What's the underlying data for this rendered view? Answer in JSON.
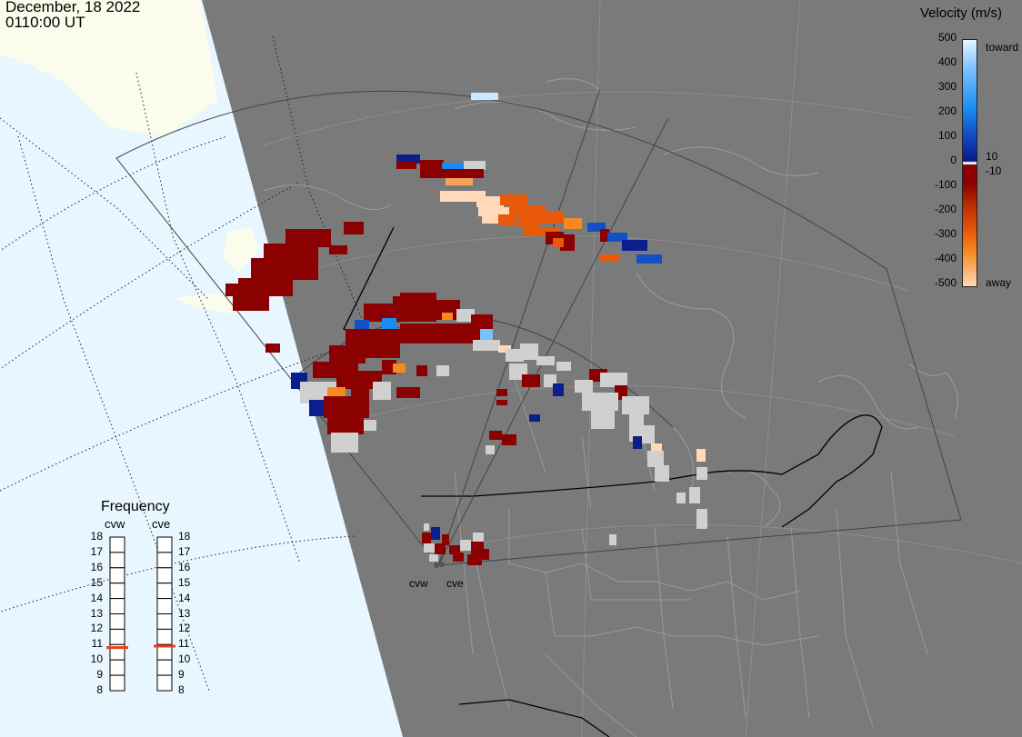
{
  "header": {
    "date": "December, 18 2022",
    "time": "0110:00 UT"
  },
  "colorbar": {
    "title": "Velocity (m/s)",
    "ticks": [
      "500",
      "400",
      "300",
      "200",
      "100",
      "0",
      "-100",
      "-200",
      "-300",
      "-400",
      "-500"
    ],
    "small_ticks": [
      "10",
      "-10"
    ],
    "toward_label": "toward",
    "away_label": "away",
    "colors": {
      "toward_light": "#c8e9ff",
      "toward_mid": "#1a8cf0",
      "toward_dark": "#0a1f8c",
      "zero": "#f0f0f0",
      "away_dark": "#8b0000",
      "away_mid": "#e85a0a",
      "away_light": "#ffd9b8"
    }
  },
  "frequency_panel": {
    "title": "Frequency",
    "radars": [
      {
        "name": "cvw",
        "freq_mhz": 10.8
      },
      {
        "name": "cve",
        "freq_mhz": 10.9
      }
    ],
    "scale": [
      "18",
      "17",
      "16",
      "15",
      "14",
      "13",
      "12",
      "11",
      "10",
      "9",
      "8"
    ],
    "indicator_color": "#e8401a"
  },
  "sites": [
    {
      "label": "cvw"
    },
    {
      "label": "cve"
    }
  ],
  "map_colors": {
    "ocean": "#e8f6ff",
    "land_sunlit": "#fbfcec",
    "night": "#7a7a7a",
    "ground_scatter": "#c8c8c8"
  }
}
